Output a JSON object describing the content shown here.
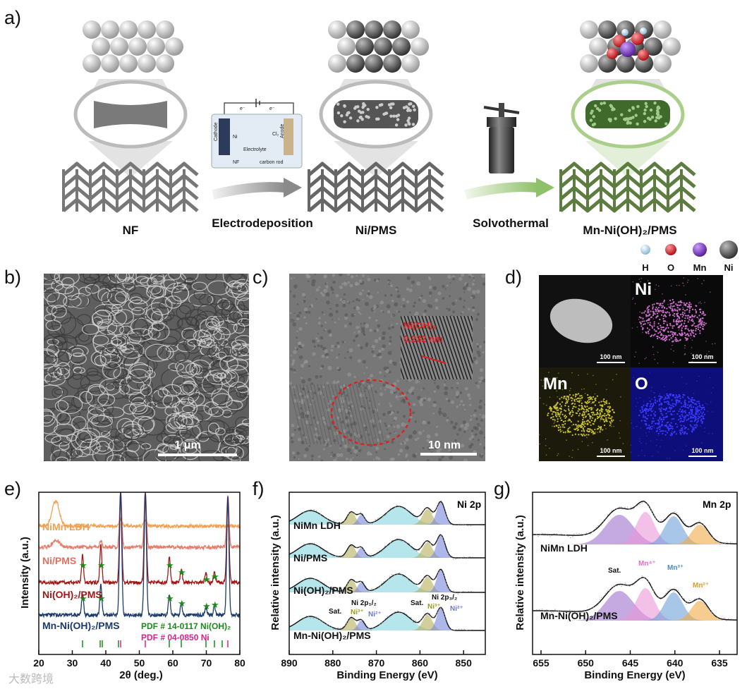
{
  "panel_a": {
    "label": "a)",
    "steps": [
      "NF",
      "Electrodeposition",
      "Ni/PMS",
      "Solvothermal",
      "Mn-Ni(OH)₂/PMS"
    ],
    "cell": {
      "cathode": "Cathode",
      "ni": "Ni",
      "electrolyte": "Electrolyte",
      "nf": "NF",
      "carbon_rod": "carbon rod",
      "anode": "Anode",
      "cl2": "Cl₂",
      "electron_left": "e⁻",
      "electron_right": "e⁻"
    },
    "legend": [
      "H",
      "O",
      "Mn",
      "Ni"
    ]
  },
  "panel_b": {
    "label": "b)",
    "scale_bar": "1 μm"
  },
  "panel_c": {
    "label": "c)",
    "inset_phase": "Ni(OH)₂",
    "inset_spacing": "0.232 nm",
    "scale_bar": "10 nm"
  },
  "panel_d": {
    "label": "d)",
    "maps": [
      "Ni",
      "Mn",
      "O"
    ],
    "scale_bars": [
      "100 nm",
      "100 nm",
      "100 nm",
      "100 nm"
    ]
  },
  "panel_e": {
    "label": "e)",
    "x_label": "2θ (deg.)",
    "y_label": "Intensity (a.u.)",
    "x_ticks": [
      20,
      30,
      40,
      50,
      60,
      70,
      80
    ],
    "samples": [
      "NiMn LDH",
      "Ni/PMS",
      "Ni(OH)₂/PMS",
      "Mn-Ni(OH)₂/PMS"
    ],
    "pdf_refs": [
      "PDF # 14-0117 Ni(OH)₂",
      "PDF # 04-0850 Ni"
    ]
  },
  "panel_f": {
    "label": "f)",
    "title": "Ni 2p",
    "x_label": "Binding Energy (eV)",
    "y_label": "Relative intensity (a.u.)",
    "x_ticks": [
      890,
      880,
      870,
      860,
      850
    ],
    "samples": [
      "NiMn LDH",
      "Ni/PMS",
      "Ni(OH)₂/PMS",
      "Mn-Ni(OH)₂/PMS"
    ],
    "peak_labels": [
      "Sat.",
      "Ni 2p₁/₂",
      "Ni³⁺",
      "Ni²⁺",
      "Sat.",
      "Ni 2p₃/₂",
      "Ni³⁺",
      "Ni²⁺"
    ]
  },
  "panel_g": {
    "label": "g)",
    "title": "Mn 2p",
    "x_label": "Binding Energy (eV)",
    "y_label": "Relative intensity (a.u.)",
    "x_ticks": [
      655,
      650,
      645,
      640,
      635
    ],
    "samples": [
      "NiMn LDH",
      "Mn-Ni(OH)₂/PMS"
    ],
    "peak_labels": [
      "Sat.",
      "Mn⁴⁺",
      "Mn³⁺",
      "Mn²⁺"
    ]
  },
  "watermark": "大数跨境"
}
